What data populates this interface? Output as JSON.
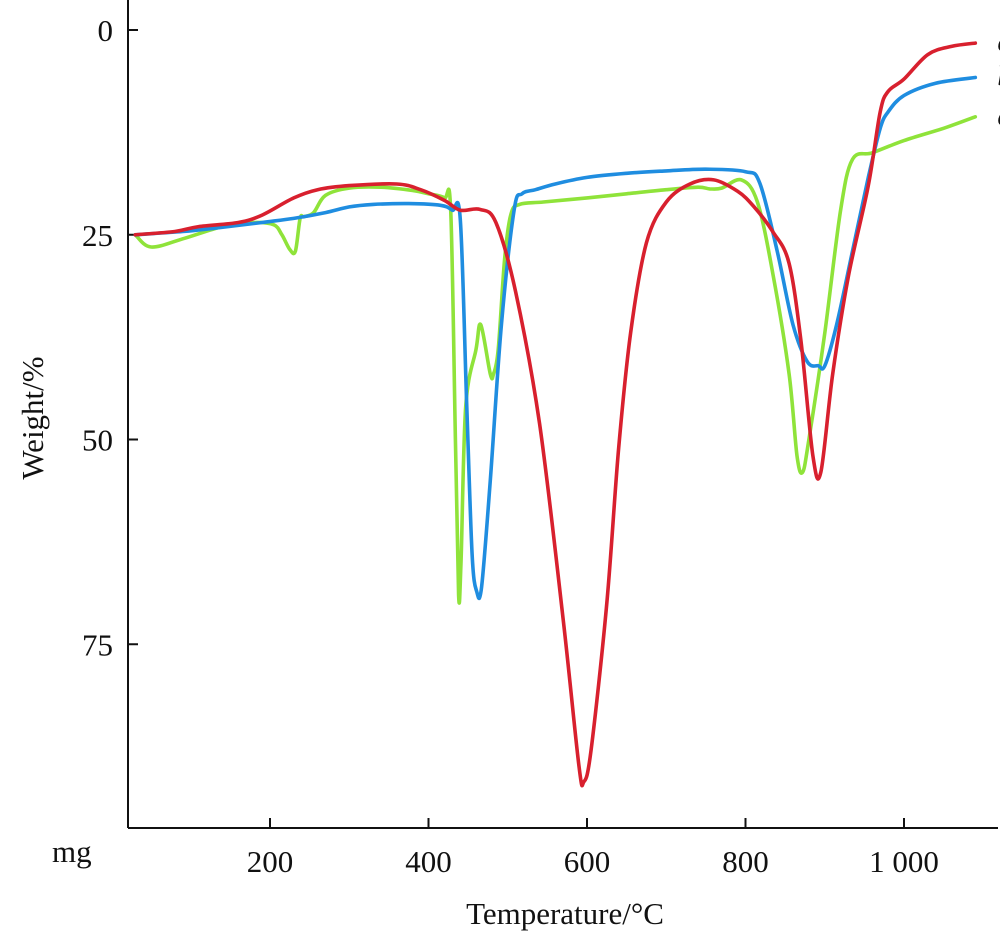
{
  "chart_data": {
    "type": "line",
    "xlabel": "Temperature/°C",
    "ylabel": "Weight/%",
    "unit_label": "mg",
    "xlim": [
      0,
      1150
    ],
    "ylim": [
      0,
      100
    ],
    "y_inverted": true,
    "x_ticks": [
      200,
      400,
      600,
      800,
      1000
    ],
    "x_tick_labels": [
      "200",
      "400",
      "600",
      "800",
      "1 000"
    ],
    "y_ticks": [
      0,
      25,
      50,
      75
    ],
    "y_tick_labels": [
      "0",
      "25",
      "50",
      "75"
    ],
    "grid": false,
    "legend": "inline labels at right end of series",
    "series": [
      {
        "name": "c",
        "color": "#d8202e",
        "points": [
          [
            30,
            25
          ],
          [
            80,
            24.6
          ],
          [
            110,
            24
          ],
          [
            160,
            23.5
          ],
          [
            190,
            22.6
          ],
          [
            230,
            20.5
          ],
          [
            260,
            19.5
          ],
          [
            300,
            19
          ],
          [
            360,
            18.8
          ],
          [
            390,
            19.5
          ],
          [
            420,
            20.8
          ],
          [
            440,
            22
          ],
          [
            465,
            21.9
          ],
          [
            485,
            23.5
          ],
          [
            510,
            32
          ],
          [
            540,
            48
          ],
          [
            570,
            72
          ],
          [
            590,
            90
          ],
          [
            596,
            91.8
          ],
          [
            605,
            88
          ],
          [
            625,
            70
          ],
          [
            640,
            51
          ],
          [
            655,
            37
          ],
          [
            675,
            26
          ],
          [
            700,
            21
          ],
          [
            730,
            18.8
          ],
          [
            760,
            18.3
          ],
          [
            790,
            19.7
          ],
          [
            810,
            21.5
          ],
          [
            835,
            24.7
          ],
          [
            855,
            28.5
          ],
          [
            870,
            38
          ],
          [
            885,
            52
          ],
          [
            895,
            54
          ],
          [
            910,
            42
          ],
          [
            930,
            30
          ],
          [
            955,
            19
          ],
          [
            970,
            10
          ],
          [
            980,
            7.5
          ],
          [
            1000,
            6
          ],
          [
            1030,
            3
          ],
          [
            1060,
            2
          ],
          [
            1090,
            1.6
          ]
        ]
      },
      {
        "name": "b",
        "color": "#1f8de0",
        "points": [
          [
            30,
            25
          ],
          [
            90,
            24.6
          ],
          [
            130,
            24.2
          ],
          [
            190,
            23.5
          ],
          [
            230,
            23
          ],
          [
            270,
            22.3
          ],
          [
            300,
            21.6
          ],
          [
            330,
            21.3
          ],
          [
            375,
            21.2
          ],
          [
            415,
            21.4
          ],
          [
            430,
            22
          ],
          [
            440,
            23
          ],
          [
            448,
            45
          ],
          [
            455,
            64
          ],
          [
            461,
            68.6
          ],
          [
            467,
            68
          ],
          [
            478,
            55
          ],
          [
            492,
            36
          ],
          [
            508,
            22
          ],
          [
            518,
            20
          ],
          [
            535,
            19.5
          ],
          [
            560,
            18.8
          ],
          [
            600,
            18
          ],
          [
            650,
            17.5
          ],
          [
            700,
            17.2
          ],
          [
            750,
            17
          ],
          [
            800,
            17.3
          ],
          [
            818,
            18.7
          ],
          [
            840,
            27
          ],
          [
            860,
            36
          ],
          [
            878,
            40.5
          ],
          [
            892,
            41
          ],
          [
            900,
            41
          ],
          [
            915,
            36
          ],
          [
            935,
            27
          ],
          [
            955,
            18
          ],
          [
            970,
            12
          ],
          [
            980,
            10
          ],
          [
            1000,
            8
          ],
          [
            1040,
            6.5
          ],
          [
            1090,
            5.8
          ]
        ]
      },
      {
        "name": "a",
        "color": "#8fe33a",
        "points": [
          [
            30,
            25
          ],
          [
            50,
            26.5
          ],
          [
            90,
            25.5
          ],
          [
            140,
            24
          ],
          [
            180,
            23.5
          ],
          [
            205,
            23.8
          ],
          [
            215,
            25
          ],
          [
            225,
            26.8
          ],
          [
            232,
            27
          ],
          [
            238,
            23
          ],
          [
            243,
            22.8
          ],
          [
            255,
            22.3
          ],
          [
            270,
            20.2
          ],
          [
            300,
            19.3
          ],
          [
            340,
            19.2
          ],
          [
            380,
            19.6
          ],
          [
            400,
            20
          ],
          [
            420,
            20.5
          ],
          [
            428,
            22
          ],
          [
            434,
            50
          ],
          [
            438,
            69
          ],
          [
            441,
            65
          ],
          [
            447,
            46
          ],
          [
            460,
            39
          ],
          [
            466,
            36
          ],
          [
            478,
            42
          ],
          [
            482,
            42
          ],
          [
            488,
            39
          ],
          [
            496,
            28
          ],
          [
            504,
            22.5
          ],
          [
            515,
            21.3
          ],
          [
            545,
            21
          ],
          [
            600,
            20.5
          ],
          [
            650,
            20
          ],
          [
            700,
            19.5
          ],
          [
            740,
            19.2
          ],
          [
            755,
            19.4
          ],
          [
            770,
            19.3
          ],
          [
            795,
            18.3
          ],
          [
            815,
            21
          ],
          [
            835,
            30
          ],
          [
            855,
            42
          ],
          [
            865,
            52
          ],
          [
            872,
            54
          ],
          [
            880,
            50
          ],
          [
            900,
            37
          ],
          [
            920,
            22
          ],
          [
            935,
            15.8
          ],
          [
            960,
            15
          ],
          [
            1000,
            13.5
          ],
          [
            1050,
            12
          ],
          [
            1090,
            10.6
          ]
        ]
      }
    ]
  }
}
